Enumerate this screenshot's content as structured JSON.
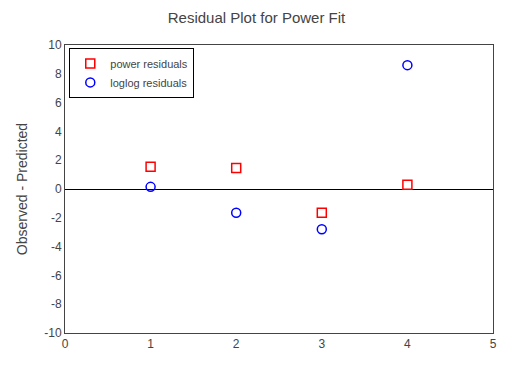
{
  "chart_data": {
    "type": "scatter",
    "title": "Residual Plot for Power Fit",
    "ylabel": "Observed - Predicted",
    "x": [
      1,
      2,
      3,
      4
    ],
    "series": [
      {
        "name": "power residuals",
        "color": "red",
        "marker": "square",
        "values": [
          1.55,
          1.45,
          -1.65,
          0.3
        ]
      },
      {
        "name": "loglog residuals",
        "color": "blue",
        "marker": "circle",
        "values": [
          0.15,
          -1.65,
          -2.8,
          8.6
        ]
      }
    ],
    "xlim": [
      0,
      5
    ],
    "ylim": [
      -10,
      10
    ],
    "xticks": [
      0,
      1,
      2,
      3,
      4,
      5
    ],
    "yticks": [
      -10,
      -8,
      -6,
      -4,
      -2,
      0,
      2,
      4,
      6,
      8,
      10
    ],
    "grid": false,
    "legend": "upper left"
  }
}
